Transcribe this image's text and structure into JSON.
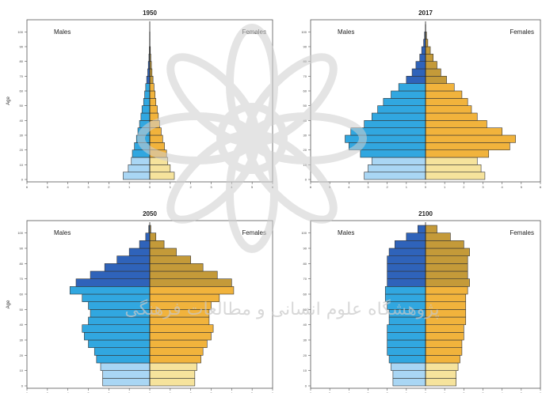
{
  "colors": {
    "male_top": "#2f63ba",
    "male_mid": "#31a7e0",
    "male_bottom": "#a9d6f4",
    "female_top": "#c49a39",
    "female_mid": "#f1b33c",
    "female_bottom": "#f6e39c",
    "bar_stroke": "#333333"
  },
  "watermark": {
    "text": "پژوهشگاه علوم انسانی و مطالعات فرهنگی"
  },
  "chart_data": [
    {
      "type": "bar",
      "orientation": "horizontal",
      "title": "1950",
      "left_label": "Males",
      "right_label": "Females",
      "ylabel": "Age",
      "age_ticks": [
        "0",
        "10",
        "20",
        "30",
        "40",
        "50",
        "60",
        "70",
        "80",
        "90",
        "100"
      ],
      "xlim": [
        -6,
        6
      ],
      "x_ticks": [
        "6",
        "5",
        "4",
        "3",
        "2",
        "1",
        "0",
        "1",
        "2",
        "3",
        "4",
        "5",
        "6"
      ],
      "age_groups": [
        "0-4",
        "5-9",
        "10-14",
        "15-19",
        "20-24",
        "25-29",
        "30-34",
        "35-39",
        "40-44",
        "45-49",
        "50-54",
        "55-59",
        "60-64",
        "65-69",
        "70-74",
        "75-79",
        "80-84",
        "85-89",
        "90-94",
        "95-99",
        "100+"
      ],
      "series": [
        {
          "name": "Males",
          "values": [
            1.3,
            1.05,
            0.9,
            0.85,
            0.75,
            0.65,
            0.58,
            0.5,
            0.43,
            0.38,
            0.3,
            0.25,
            0.2,
            0.15,
            0.1,
            0.07,
            0.04,
            0.02,
            0.01,
            0.01,
            0.0
          ]
        },
        {
          "name": "Females",
          "values": [
            1.2,
            1.0,
            0.88,
            0.82,
            0.72,
            0.63,
            0.56,
            0.48,
            0.42,
            0.37,
            0.3,
            0.26,
            0.21,
            0.16,
            0.11,
            0.08,
            0.05,
            0.03,
            0.01,
            0.01,
            0.0
          ]
        }
      ]
    },
    {
      "type": "bar",
      "orientation": "horizontal",
      "title": "2017",
      "left_label": "Males",
      "right_label": "Females",
      "ylabel": "",
      "age_ticks": [
        "0",
        "10",
        "20",
        "30",
        "40",
        "50",
        "60",
        "70",
        "80",
        "90",
        "100"
      ],
      "xlim": [
        -6,
        6
      ],
      "x_ticks": [
        "6",
        "5",
        "4",
        "3",
        "2",
        "1",
        "0",
        "1",
        "2",
        "3",
        "4",
        "5",
        "6"
      ],
      "age_groups": [
        "0-4",
        "5-9",
        "10-14",
        "15-19",
        "20-24",
        "25-29",
        "30-34",
        "35-39",
        "40-44",
        "45-49",
        "50-54",
        "55-59",
        "60-64",
        "65-69",
        "70-74",
        "75-79",
        "80-84",
        "85-89",
        "90-94",
        "95-99",
        "100+"
      ],
      "series": [
        {
          "name": "Males",
          "values": [
            3.2,
            3.0,
            2.8,
            3.4,
            4.0,
            4.2,
            3.9,
            3.2,
            2.8,
            2.5,
            2.2,
            1.8,
            1.4,
            1.0,
            0.7,
            0.5,
            0.3,
            0.2,
            0.1,
            0.05,
            0.01
          ]
        },
        {
          "name": "Females",
          "values": [
            3.1,
            2.9,
            2.7,
            3.3,
            4.4,
            4.7,
            4.0,
            3.2,
            2.7,
            2.4,
            2.2,
            1.9,
            1.5,
            1.1,
            0.8,
            0.6,
            0.4,
            0.25,
            0.12,
            0.05,
            0.01
          ]
        }
      ]
    },
    {
      "type": "bar",
      "orientation": "horizontal",
      "title": "2050",
      "left_label": "Males",
      "right_label": "Females",
      "ylabel": "Age",
      "age_ticks": [
        "0",
        "10",
        "20",
        "30",
        "40",
        "50",
        "60",
        "70",
        "80",
        "90",
        "100"
      ],
      "xlim": [
        -6,
        6
      ],
      "x_ticks": [
        "6",
        "5",
        "4",
        "3",
        "2",
        "1",
        "0",
        "1",
        "2",
        "3",
        "4",
        "5",
        "6"
      ],
      "age_groups": [
        "0-4",
        "5-9",
        "10-14",
        "15-19",
        "20-24",
        "25-29",
        "30-34",
        "35-39",
        "40-44",
        "45-49",
        "50-54",
        "55-59",
        "60-64",
        "65-69",
        "70-74",
        "75-79",
        "80-84",
        "85-89",
        "90-94",
        "95-99",
        "100+"
      ],
      "series": [
        {
          "name": "Males",
          "values": [
            2.3,
            2.3,
            2.4,
            2.6,
            2.7,
            3.0,
            3.2,
            3.3,
            3.0,
            2.9,
            3.0,
            3.3,
            3.9,
            3.6,
            2.9,
            2.2,
            1.6,
            1.0,
            0.5,
            0.2,
            0.05
          ]
        },
        {
          "name": "Females",
          "values": [
            2.2,
            2.2,
            2.3,
            2.5,
            2.6,
            2.8,
            3.0,
            3.1,
            2.9,
            2.9,
            3.0,
            3.4,
            4.1,
            4.0,
            3.3,
            2.6,
            2.0,
            1.3,
            0.7,
            0.3,
            0.05
          ]
        }
      ]
    },
    {
      "type": "bar",
      "orientation": "horizontal",
      "title": "2100",
      "left_label": "Males",
      "right_label": "Females",
      "ylabel": "",
      "age_ticks": [
        "0",
        "10",
        "20",
        "30",
        "40",
        "50",
        "60",
        "70",
        "80",
        "90",
        "100"
      ],
      "xlim": [
        -6,
        6
      ],
      "x_ticks": [
        "6",
        "5",
        "4",
        "3",
        "2",
        "1",
        "0",
        "1",
        "2",
        "3",
        "4",
        "5",
        "6"
      ],
      "age_groups": [
        "0-4",
        "5-9",
        "10-14",
        "15-19",
        "20-24",
        "25-29",
        "30-34",
        "35-39",
        "40-44",
        "45-49",
        "50-54",
        "55-59",
        "60-64",
        "65-69",
        "70-74",
        "75-79",
        "80-84",
        "85-89",
        "90-94",
        "95-99",
        "100+"
      ],
      "series": [
        {
          "name": "Males",
          "values": [
            1.7,
            1.7,
            1.8,
            1.9,
            2.0,
            2.0,
            2.0,
            2.0,
            1.9,
            1.9,
            2.0,
            2.1,
            2.1,
            2.0,
            2.0,
            2.0,
            2.0,
            1.9,
            1.6,
            1.0,
            0.4
          ]
        },
        {
          "name": "Females",
          "values": [
            1.6,
            1.6,
            1.7,
            1.8,
            1.9,
            1.9,
            2.0,
            2.0,
            2.1,
            2.1,
            2.1,
            2.1,
            2.2,
            2.3,
            2.2,
            2.2,
            2.2,
            2.3,
            2.0,
            1.3,
            0.6
          ]
        }
      ]
    }
  ]
}
